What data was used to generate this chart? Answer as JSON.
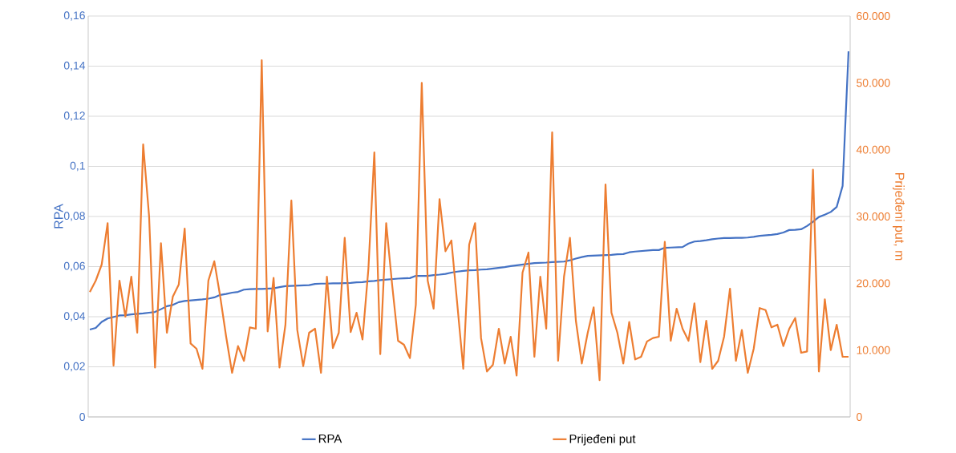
{
  "chart_data": {
    "type": "line",
    "ylabel": "RPA",
    "y2label": "Prijeđeni put, m",
    "categories": [
      null,
      null,
      null,
      null,
      null,
      null,
      null,
      null,
      null,
      null,
      null,
      null,
      null,
      null,
      null,
      null,
      null,
      null,
      null,
      null,
      null,
      null,
      null,
      null,
      null,
      null,
      null,
      null,
      null,
      null,
      null,
      null,
      null,
      null,
      null,
      null,
      null,
      null,
      null,
      null,
      null,
      null,
      null,
      null,
      null,
      null,
      null,
      null,
      null,
      null,
      null,
      null,
      null,
      null,
      null,
      null,
      null,
      null,
      null,
      null,
      null,
      null,
      null,
      null,
      null,
      null,
      null,
      null,
      null,
      null,
      null,
      null,
      null,
      null,
      null,
      null,
      null,
      null,
      null,
      null,
      null,
      null,
      null,
      null,
      null,
      null,
      null,
      null,
      null,
      null,
      null,
      null,
      null,
      null,
      null,
      null,
      null,
      null,
      null,
      null,
      null,
      null,
      null,
      null,
      null,
      null,
      null,
      null,
      null,
      null,
      null,
      null,
      null,
      null,
      null,
      null,
      null,
      null,
      null,
      null,
      null,
      null,
      null,
      null,
      null,
      null,
      null,
      null,
      null
    ],
    "series": [
      {
        "name": "RPA",
        "color": "#4472c4",
        "values": [
          0.0349,
          0.0355,
          0.0379,
          0.0393,
          0.0399,
          0.0405,
          0.0406,
          0.0409,
          0.0411,
          0.0413,
          0.0416,
          0.0419,
          0.043,
          0.0442,
          0.0447,
          0.0458,
          0.0463,
          0.0465,
          0.0467,
          0.0469,
          0.0472,
          0.0477,
          0.0487,
          0.0491,
          0.0496,
          0.0499,
          0.0508,
          0.051,
          0.0511,
          0.0511,
          0.0512,
          0.0513,
          0.0518,
          0.0522,
          0.0523,
          0.0524,
          0.0525,
          0.0526,
          0.0531,
          0.0532,
          0.0532,
          0.0533,
          0.0533,
          0.0534,
          0.0535,
          0.0537,
          0.0538,
          0.0541,
          0.0543,
          0.0546,
          0.0548,
          0.055,
          0.0552,
          0.0553,
          0.0554,
          0.0563,
          0.0563,
          0.0563,
          0.0566,
          0.0568,
          0.0571,
          0.0576,
          0.058,
          0.0583,
          0.0585,
          0.0586,
          0.0588,
          0.0589,
          0.0592,
          0.0595,
          0.0598,
          0.0602,
          0.0605,
          0.0608,
          0.0611,
          0.0614,
          0.0615,
          0.0616,
          0.0618,
          0.0619,
          0.062,
          0.0625,
          0.0632,
          0.0638,
          0.0643,
          0.0644,
          0.0645,
          0.0646,
          0.0647,
          0.0649,
          0.065,
          0.0657,
          0.066,
          0.0662,
          0.0664,
          0.0666,
          0.0666,
          0.0675,
          0.0676,
          0.0677,
          0.0678,
          0.0692,
          0.07,
          0.0702,
          0.0705,
          0.0709,
          0.0712,
          0.0714,
          0.0714,
          0.0715,
          0.0715,
          0.0716,
          0.0719,
          0.0723,
          0.0725,
          0.0727,
          0.073,
          0.0736,
          0.0746,
          0.0747,
          0.0749,
          0.0762,
          0.0779,
          0.0798,
          0.0807,
          0.0818,
          0.0838,
          0.0922,
          0.1459
        ]
      },
      {
        "name": "Prijeđeni put",
        "color": "#ed7d31",
        "axis": "y2",
        "values": [
          18700,
          20400,
          22800,
          29000,
          7700,
          20400,
          15000,
          21000,
          12600,
          40800,
          30000,
          7400,
          26000,
          12600,
          18000,
          19800,
          28200,
          11000,
          10200,
          7200,
          20400,
          23300,
          18000,
          12000,
          6600,
          10600,
          8400,
          13400,
          13200,
          53400,
          12800,
          20800,
          7400,
          13800,
          32400,
          13000,
          7600,
          12600,
          13200,
          6600,
          21000,
          10300,
          12600,
          26800,
          12700,
          15600,
          11600,
          22200,
          39600,
          9400,
          29000,
          19800,
          11400,
          10800,
          8800,
          16800,
          50000,
          20400,
          16200,
          32600,
          24800,
          26400,
          16800,
          7200,
          25800,
          29000,
          11800,
          6800,
          7800,
          13200,
          8000,
          12000,
          6200,
          21600,
          24600,
          9000,
          21000,
          13200,
          42600,
          8400,
          21000,
          26800,
          14400,
          8000,
          12600,
          16400,
          5500,
          34800,
          15600,
          12600,
          8000,
          14200,
          8600,
          9000,
          11300,
          11800,
          12000,
          26200,
          11400,
          16200,
          13200,
          11400,
          17000,
          8200,
          14400,
          7200,
          8400,
          12000,
          19200,
          8400,
          13000,
          6600,
          10200,
          16300,
          16000,
          13400,
          13800,
          10600,
          13200,
          14800,
          9600,
          9800,
          37000,
          6800,
          17600,
          10000,
          13800,
          9000,
          9000
        ]
      }
    ],
    "ylim": [
      0,
      0.16
    ],
    "yticks": [
      {
        "value": 0,
        "label": "0"
      },
      {
        "value": 0.02,
        "label": "0,02"
      },
      {
        "value": 0.04,
        "label": "0,04"
      },
      {
        "value": 0.06,
        "label": "0,06"
      },
      {
        "value": 0.08,
        "label": "0,08"
      },
      {
        "value": 0.1,
        "label": "0,1"
      },
      {
        "value": 0.12,
        "label": "0,12"
      },
      {
        "value": 0.14,
        "label": "0,14"
      },
      {
        "value": 0.16,
        "label": "0,16"
      }
    ],
    "y2lim": [
      0,
      60000
    ],
    "y2ticks": [
      {
        "value": 0,
        "label": "0"
      },
      {
        "value": 10000,
        "label": "10.000"
      },
      {
        "value": 20000,
        "label": "20.000"
      },
      {
        "value": 30000,
        "label": "30.000"
      },
      {
        "value": 40000,
        "label": "40.000"
      },
      {
        "value": 50000,
        "label": "50.000"
      },
      {
        "value": 60000,
        "label": "60.000"
      }
    ],
    "grid": "y",
    "legend": "bottom",
    "marker": "none",
    "line_style": "solid"
  }
}
